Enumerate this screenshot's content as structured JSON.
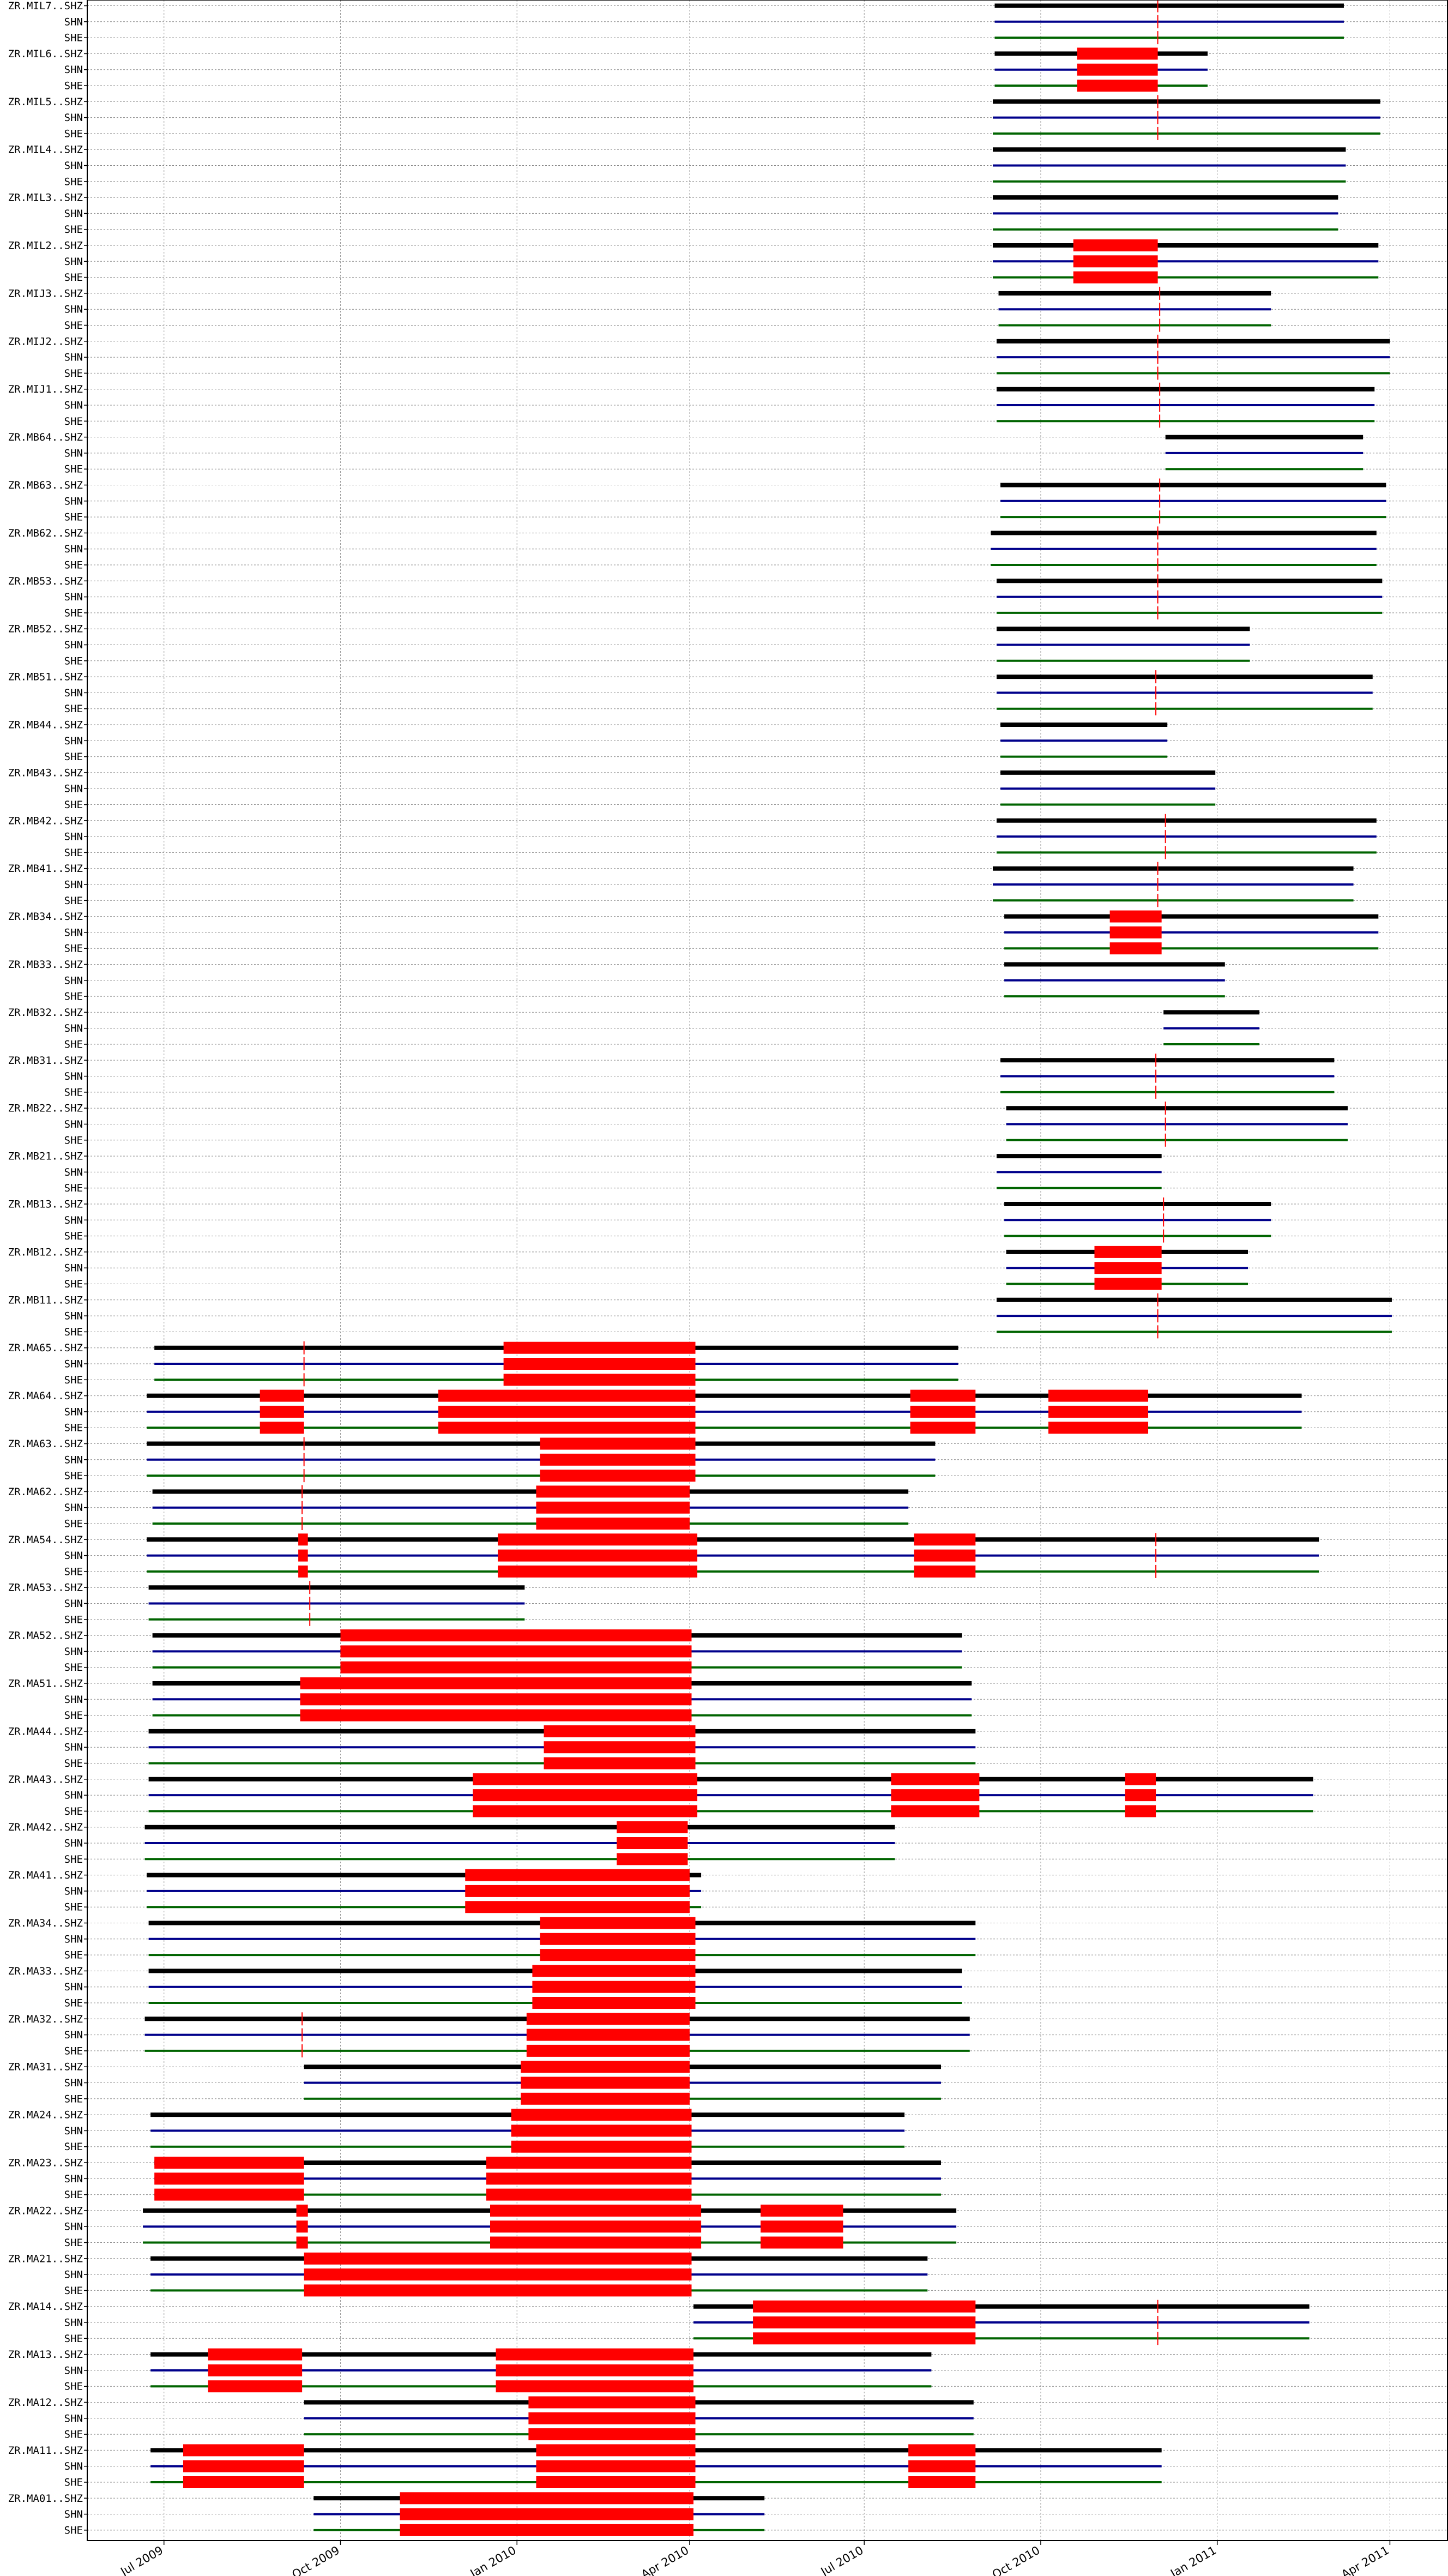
{
  "chart_data": {
    "type": "timeline",
    "x_axis": {
      "type": "date",
      "range": [
        "2009-05-22",
        "2011-05-01"
      ],
      "ticks": [
        {
          "date": "2009-07-01",
          "label": "Jul 2009"
        },
        {
          "date": "2009-10-01",
          "label": "Oct 2009"
        },
        {
          "date": "2010-01-01",
          "label": "Jan 2010"
        },
        {
          "date": "2010-04-01",
          "label": "Apr 2010"
        },
        {
          "date": "2010-07-01",
          "label": "Jul 2010"
        },
        {
          "date": "2010-10-01",
          "label": "Oct 2010"
        },
        {
          "date": "2011-01-01",
          "label": "Jan 2011"
        },
        {
          "date": "2011-04-01",
          "label": "Apr 2011"
        }
      ]
    },
    "grid": true,
    "channel_colors": {
      "SHZ": "#000000",
      "SHN": "#00008b",
      "SHE": "#006400"
    },
    "gap_color": "#ff0000",
    "stations": [
      {
        "label": "ZR.MIL7..",
        "start": "2010-09-07",
        "end": "2011-03-08",
        "gaps": [],
        "marks": [
          "2010-12-01"
        ]
      },
      {
        "label": "ZR.MIL6..",
        "start": "2010-09-07",
        "end": "2010-12-27",
        "gaps": [
          [
            "2010-10-20",
            "2010-12-01"
          ]
        ],
        "marks": []
      },
      {
        "label": "ZR.MIL5..",
        "start": "2010-09-06",
        "end": "2011-03-27",
        "gaps": [],
        "marks": [
          "2010-12-01"
        ]
      },
      {
        "label": "ZR.MIL4..",
        "start": "2010-09-06",
        "end": "2011-03-09",
        "gaps": [],
        "marks": []
      },
      {
        "label": "ZR.MIL3..",
        "start": "2010-09-06",
        "end": "2011-03-05",
        "gaps": [],
        "marks": []
      },
      {
        "label": "ZR.MIL2..",
        "start": "2010-09-06",
        "end": "2011-03-26",
        "gaps": [
          [
            "2010-10-18",
            "2010-12-01"
          ]
        ],
        "marks": []
      },
      {
        "label": "ZR.MIJ3..",
        "start": "2010-09-09",
        "end": "2011-01-29",
        "gaps": [],
        "marks": [
          "2010-12-02"
        ]
      },
      {
        "label": "ZR.MIJ2..",
        "start": "2010-09-08",
        "end": "2011-04-01",
        "gaps": [],
        "marks": [
          "2010-12-01"
        ]
      },
      {
        "label": "ZR.MIJ1..",
        "start": "2010-09-08",
        "end": "2011-03-24",
        "gaps": [],
        "marks": [
          "2010-12-02"
        ]
      },
      {
        "label": "ZR.MB64..",
        "start": "2010-12-05",
        "end": "2011-03-18",
        "gaps": [],
        "marks": []
      },
      {
        "label": "ZR.MB63..",
        "start": "2010-09-10",
        "end": "2011-03-30",
        "gaps": [],
        "marks": [
          "2010-12-02"
        ]
      },
      {
        "label": "ZR.MB62..",
        "start": "2010-09-05",
        "end": "2011-03-25",
        "gaps": [],
        "marks": [
          "2010-12-01"
        ]
      },
      {
        "label": "ZR.MB53..",
        "start": "2010-09-08",
        "end": "2011-03-28",
        "gaps": [],
        "marks": [
          "2010-12-01"
        ]
      },
      {
        "label": "ZR.MB52..",
        "start": "2010-09-08",
        "end": "2011-01-18",
        "gaps": [],
        "marks": []
      },
      {
        "label": "ZR.MB51..",
        "start": "2010-09-08",
        "end": "2011-03-23",
        "gaps": [],
        "marks": [
          "2010-11-30"
        ]
      },
      {
        "label": "ZR.MB44..",
        "start": "2010-09-10",
        "end": "2010-12-06",
        "gaps": [],
        "marks": []
      },
      {
        "label": "ZR.MB43..",
        "start": "2010-09-10",
        "end": "2010-12-31",
        "gaps": [],
        "marks": []
      },
      {
        "label": "ZR.MB42..",
        "start": "2010-09-08",
        "end": "2011-03-25",
        "gaps": [],
        "marks": [
          "2010-12-05"
        ]
      },
      {
        "label": "ZR.MB41..",
        "start": "2010-09-06",
        "end": "2011-03-13",
        "gaps": [],
        "marks": [
          "2010-12-01"
        ]
      },
      {
        "label": "ZR.MB34..",
        "start": "2010-09-12",
        "end": "2011-03-26",
        "gaps": [
          [
            "2010-11-06",
            "2010-12-03"
          ]
        ],
        "marks": []
      },
      {
        "label": "ZR.MB33..",
        "start": "2010-09-12",
        "end": "2011-01-05",
        "gaps": [],
        "marks": []
      },
      {
        "label": "ZR.MB32..",
        "start": "2010-12-04",
        "end": "2011-01-23",
        "gaps": [],
        "marks": []
      },
      {
        "label": "ZR.MB31..",
        "start": "2010-09-10",
        "end": "2011-03-03",
        "gaps": [],
        "marks": [
          "2010-11-30"
        ]
      },
      {
        "label": "ZR.MB22..",
        "start": "2010-09-13",
        "end": "2011-03-10",
        "gaps": [],
        "marks": [
          "2010-12-05"
        ]
      },
      {
        "label": "ZR.MB21..",
        "start": "2010-09-08",
        "end": "2010-12-03",
        "gaps": [],
        "marks": []
      },
      {
        "label": "ZR.MB13..",
        "start": "2010-09-12",
        "end": "2011-01-29",
        "gaps": [],
        "marks": [
          "2010-12-04"
        ]
      },
      {
        "label": "ZR.MB12..",
        "start": "2010-09-13",
        "end": "2011-01-17",
        "gaps": [
          [
            "2010-10-29",
            "2010-12-03"
          ]
        ],
        "marks": []
      },
      {
        "label": "ZR.MB11..",
        "start": "2010-09-08",
        "end": "2011-04-02",
        "gaps": [],
        "marks": [
          "2010-12-01"
        ]
      },
      {
        "label": "ZR.MA65..",
        "start": "2009-06-26",
        "end": "2010-08-19",
        "gaps": [
          [
            "2009-12-25",
            "2010-04-04"
          ]
        ],
        "marks": [
          "2009-09-12"
        ]
      },
      {
        "label": "ZR.MA64..",
        "start": "2009-06-22",
        "end": "2011-02-14",
        "gaps": [
          [
            "2009-08-20",
            "2009-09-12"
          ],
          [
            "2009-11-21",
            "2010-04-04"
          ],
          [
            "2010-07-25",
            "2010-08-28"
          ],
          [
            "2010-10-05",
            "2010-11-26"
          ]
        ],
        "marks": []
      },
      {
        "label": "ZR.MA63..",
        "start": "2009-06-22",
        "end": "2010-08-07",
        "gaps": [
          [
            "2010-01-13",
            "2010-04-04"
          ]
        ],
        "marks": [
          "2009-09-12"
        ]
      },
      {
        "label": "ZR.MA62..",
        "start": "2009-06-25",
        "end": "2010-07-24",
        "gaps": [
          [
            "2010-01-11",
            "2010-04-01"
          ]
        ],
        "marks": [
          "2009-09-11"
        ]
      },
      {
        "label": "ZR.MA54..",
        "start": "2009-06-22",
        "end": "2011-02-23",
        "gaps": [
          [
            "2009-09-09",
            "2009-09-14"
          ],
          [
            "2009-12-22",
            "2010-04-05"
          ],
          [
            "2010-07-27",
            "2010-08-28"
          ]
        ],
        "marks": [
          "2010-11-30"
        ]
      },
      {
        "label": "ZR.MA53..",
        "start": "2009-06-23",
        "end": "2009-12-36",
        "gaps": [],
        "marks": [
          "2009-09-15"
        ]
      },
      {
        "label": "ZR.MA52..",
        "start": "2009-06-25",
        "end": "2010-08-21",
        "gaps": [
          [
            "2009-10-01",
            "2010-04-02"
          ]
        ],
        "marks": []
      },
      {
        "label": "ZR.MA51..",
        "start": "2009-06-25",
        "end": "2010-08-26",
        "gaps": [
          [
            "2009-09-10",
            "2010-04-02"
          ]
        ],
        "marks": []
      },
      {
        "label": "ZR.MA44..",
        "start": "2009-06-23",
        "end": "2010-08-28",
        "gaps": [
          [
            "2010-01-15",
            "2010-04-04"
          ]
        ],
        "marks": []
      },
      {
        "label": "ZR.MA43..",
        "start": "2009-06-23",
        "end": "2011-02-20",
        "gaps": [
          [
            "2009-12-09",
            "2010-04-05"
          ],
          [
            "2010-07-15",
            "2010-08-30"
          ],
          [
            "2010-11-14",
            "2010-11-30"
          ]
        ],
        "marks": []
      },
      {
        "label": "ZR.MA42..",
        "start": "2009-06-21",
        "end": "2010-07-17",
        "gaps": [
          [
            "2010-02-22",
            "2010-03-31"
          ]
        ],
        "marks": []
      },
      {
        "label": "ZR.MA41..",
        "start": "2009-06-22",
        "end": "2010-04-07",
        "gaps": [
          [
            "2009-12-05",
            "2010-04-01"
          ]
        ],
        "marks": []
      },
      {
        "label": "ZR.MA34..",
        "start": "2009-06-23",
        "end": "2010-08-28",
        "gaps": [
          [
            "2010-01-13",
            "2010-04-04"
          ]
        ],
        "marks": []
      },
      {
        "label": "ZR.MA33..",
        "start": "2009-06-23",
        "end": "2010-08-21",
        "gaps": [
          [
            "2010-01-09",
            "2010-04-04"
          ]
        ],
        "marks": []
      },
      {
        "label": "ZR.MA32..",
        "start": "2009-06-21",
        "end": "2010-08-25",
        "gaps": [
          [
            "2010-01-06",
            "2010-04-01"
          ]
        ],
        "marks": [
          "2009-09-11"
        ]
      },
      {
        "label": "ZR.MA31..",
        "start": "2009-09-12",
        "end": "2010-08-10",
        "gaps": [
          [
            "2010-01-03",
            "2010-04-01"
          ]
        ],
        "marks": []
      },
      {
        "label": "ZR.MA24..",
        "start": "2009-06-24",
        "end": "2010-07-22",
        "gaps": [
          [
            "2009-12-29",
            "2010-04-02"
          ]
        ],
        "marks": []
      },
      {
        "label": "ZR.MA23..",
        "start": "2009-06-26",
        "end": "2010-08-10",
        "gaps": [
          [
            "2009-06-26",
            "2009-09-12"
          ],
          [
            "2009-12-16",
            "2010-04-02"
          ]
        ],
        "marks": []
      },
      {
        "label": "ZR.MA22..",
        "start": "2009-06-20",
        "end": "2010-08-18",
        "gaps": [
          [
            "2009-09-08",
            "2009-09-14"
          ],
          [
            "2009-12-18",
            "2010-04-07"
          ],
          [
            "2010-05-08",
            "2010-06-20"
          ]
        ],
        "marks": []
      },
      {
        "label": "ZR.MA21..",
        "start": "2009-06-24",
        "end": "2010-08-03",
        "gaps": [
          [
            "2009-09-12",
            "2010-04-02"
          ]
        ],
        "marks": []
      },
      {
        "label": "ZR.MA14..",
        "start": "2010-04-03",
        "end": "2011-02-18",
        "gaps": [
          [
            "2010-05-04",
            "2010-08-28"
          ]
        ],
        "marks": [
          "2010-12-01"
        ]
      },
      {
        "label": "ZR.MA13..",
        "start": "2009-06-24",
        "end": "2010-08-05",
        "gaps": [
          [
            "2009-07-24",
            "2009-09-11"
          ],
          [
            "2009-12-21",
            "2010-04-03"
          ]
        ],
        "marks": []
      },
      {
        "label": "ZR.MA12..",
        "start": "2009-09-12",
        "end": "2010-08-27",
        "gaps": [
          [
            "2010-01-07",
            "2010-04-04"
          ]
        ],
        "marks": []
      },
      {
        "label": "ZR.MA11..",
        "start": "2009-06-24",
        "end": "2010-12-03",
        "gaps": [
          [
            "2009-07-11",
            "2009-09-12"
          ],
          [
            "2010-01-11",
            "2010-04-04"
          ],
          [
            "2010-07-24",
            "2010-08-28"
          ]
        ],
        "marks": []
      },
      {
        "label": "ZR.MA01..",
        "start": "2009-09-17",
        "end": "2010-05-10",
        "gaps": [
          [
            "2009-11-01",
            "2010-04-03"
          ]
        ],
        "marks": []
      }
    ]
  }
}
